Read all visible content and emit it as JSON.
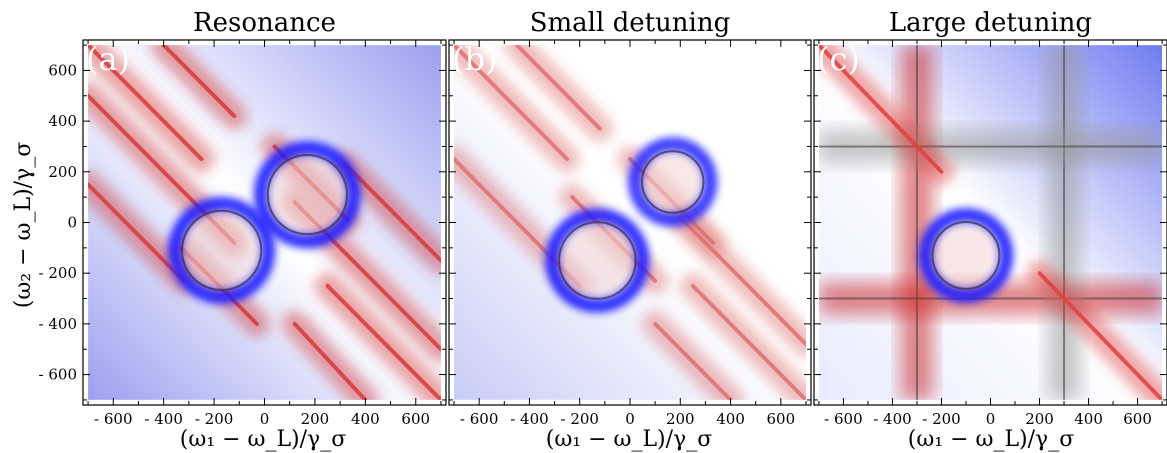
{
  "figure": {
    "ylabel": "(ω₂ − ω_L)/γ_σ",
    "xlabel": "(ω₁ − ω_L)/γ_σ"
  },
  "chart_data": [
    {
      "type": "heatmap",
      "title": "Resonance",
      "panel_label": "(a)",
      "xlabel": "(ω₁ − ω_L)/γ_σ",
      "ylabel": "(ω₂ − ω_L)/γ_σ",
      "xlim": [
        -720,
        720
      ],
      "ylim": [
        -720,
        720
      ],
      "data_extent": [
        -700,
        700
      ],
      "xticks": [
        -600,
        -400,
        -200,
        0,
        200,
        400,
        600
      ],
      "yticks": [
        -600,
        -400,
        -200,
        0,
        200,
        400,
        600
      ],
      "colormap": [
        "#1010ff",
        "#ffffff",
        "#ff1010"
      ],
      "background": {
        "upper_right": "#9aa0f0",
        "lower_left": "#9aa0f0"
      },
      "features": [
        {
          "kind": "ridge",
          "x1": -700,
          "y1": 700,
          "x2": -250,
          "y2": 250,
          "color": "#d63a3a"
        },
        {
          "kind": "ridge",
          "x1": -400,
          "y1": 700,
          "x2": -120,
          "y2": 420,
          "color": "#d63a3a"
        },
        {
          "kind": "ridge",
          "x1": -700,
          "y1": 150,
          "x2": -320,
          "y2": -230,
          "color": "#d63a3a"
        },
        {
          "kind": "ridge",
          "x1": -700,
          "y1": 500,
          "x2": -120,
          "y2": -80,
          "color": "#d63a3a"
        },
        {
          "kind": "ridge",
          "x1": -330,
          "y1": -100,
          "x2": -30,
          "y2": -400,
          "color": "#d63a3a"
        },
        {
          "kind": "ridge",
          "x1": 40,
          "y1": 300,
          "x2": 330,
          "y2": 10,
          "color": "#d63a3a"
        },
        {
          "kind": "ridge",
          "x1": 120,
          "y1": 80,
          "x2": 700,
          "y2": -500,
          "color": "#d63a3a"
        },
        {
          "kind": "ridge",
          "x1": 320,
          "y1": 230,
          "x2": 700,
          "y2": -150,
          "color": "#d63a3a"
        },
        {
          "kind": "ridge",
          "x1": 250,
          "y1": -250,
          "x2": 700,
          "y2": -700,
          "color": "#d63a3a"
        },
        {
          "kind": "ridge",
          "x1": 120,
          "y1": -400,
          "x2": 400,
          "y2": -700,
          "color": "#d63a3a"
        },
        {
          "kind": "ring",
          "cx": -170,
          "cy": -110,
          "r": 185,
          "color": "#1a1aff"
        },
        {
          "kind": "ring",
          "cx": 170,
          "cy": 110,
          "r": 185,
          "color": "#1a1aff"
        }
      ]
    },
    {
      "type": "heatmap",
      "title": "Small detuning",
      "panel_label": "(b)",
      "xlabel": "(ω₁ − ω_L)/γ_σ",
      "ylabel": "(ω₂ − ω_L)/γ_σ",
      "xlim": [
        -720,
        720
      ],
      "ylim": [
        -720,
        720
      ],
      "data_extent": [
        -700,
        700
      ],
      "xticks": [
        -600,
        -400,
        -200,
        0,
        200,
        400,
        600
      ],
      "yticks": [
        -600,
        -400,
        -200,
        0,
        200,
        400,
        600
      ],
      "colormap": [
        "#1010ff",
        "#ffffff",
        "#ff1010"
      ],
      "background": {
        "upper_right": "#ffffff",
        "lower_left": "#c8cdf5"
      },
      "features": [
        {
          "kind": "ridge",
          "x1": -700,
          "y1": 700,
          "x2": -250,
          "y2": 250,
          "color": "#e07070"
        },
        {
          "kind": "ridge",
          "x1": -450,
          "y1": 700,
          "x2": -120,
          "y2": 370,
          "color": "#e07070"
        },
        {
          "kind": "ridge",
          "x1": -700,
          "y1": 250,
          "x2": -200,
          "y2": -250,
          "color": "#e07070"
        },
        {
          "kind": "ridge",
          "x1": -230,
          "y1": 100,
          "x2": 100,
          "y2": -230,
          "color": "#e07070"
        },
        {
          "kind": "ridge",
          "x1": 0,
          "y1": 250,
          "x2": 330,
          "y2": -80,
          "color": "#e07070"
        },
        {
          "kind": "ridge",
          "x1": 200,
          "y1": 20,
          "x2": 700,
          "y2": -480,
          "color": "#e07070"
        },
        {
          "kind": "ridge",
          "x1": 250,
          "y1": -250,
          "x2": 700,
          "y2": -700,
          "color": "#e07070"
        },
        {
          "kind": "ridge",
          "x1": 100,
          "y1": -400,
          "x2": 400,
          "y2": -700,
          "color": "#e07070"
        },
        {
          "kind": "ring",
          "cx": -130,
          "cy": -150,
          "r": 180,
          "color": "#1a1aff"
        },
        {
          "kind": "ring",
          "cx": 170,
          "cy": 160,
          "r": 150,
          "color": "#2a2aff"
        }
      ]
    },
    {
      "type": "heatmap",
      "title": "Large detuning",
      "panel_label": "(c)",
      "xlabel": "(ω₁ − ω_L)/γ_σ",
      "ylabel": "(ω₂ − ω_L)/γ_σ",
      "xlim": [
        -720,
        720
      ],
      "ylim": [
        -720,
        720
      ],
      "data_extent": [
        -700,
        700
      ],
      "xticks": [
        -600,
        -400,
        -200,
        0,
        200,
        400,
        600
      ],
      "yticks": [
        -600,
        -400,
        -200,
        0,
        200,
        400,
        600
      ],
      "colormap": [
        "#1010ff",
        "#ffffff",
        "#ff1010"
      ],
      "background": {
        "upper_right": "#6f7cf0",
        "lower_left": "#e8ebff"
      },
      "features": [
        {
          "kind": "vband",
          "x": -300,
          "color": "#cc2020"
        },
        {
          "kind": "hband",
          "y": -300,
          "color": "#cc2020"
        },
        {
          "kind": "vband",
          "x": 300,
          "color": "#999999"
        },
        {
          "kind": "hband",
          "y": 300,
          "color": "#999999"
        },
        {
          "kind": "ridge",
          "x1": -700,
          "y1": 700,
          "x2": -200,
          "y2": 200,
          "color": "#e04040"
        },
        {
          "kind": "ridge",
          "x1": 200,
          "y1": -200,
          "x2": 700,
          "y2": -700,
          "color": "#e04040"
        },
        {
          "kind": "ring",
          "cx": -100,
          "cy": -130,
          "r": 165,
          "color": "#1a1aff"
        }
      ]
    }
  ]
}
